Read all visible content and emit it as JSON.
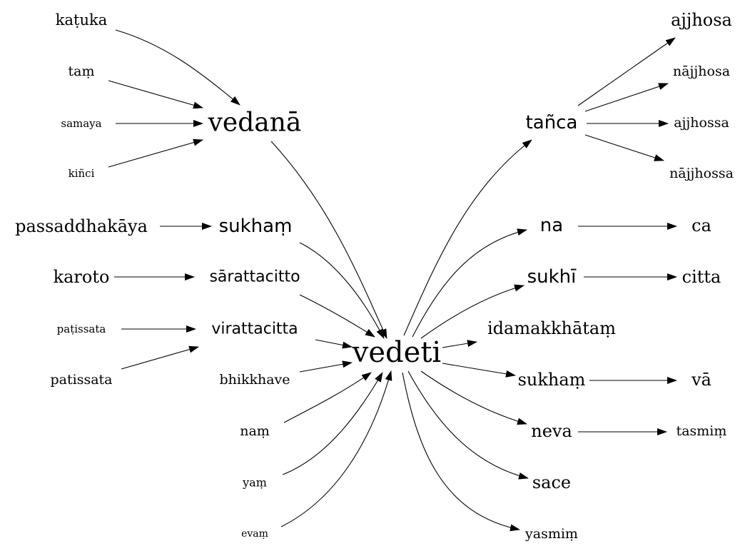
{
  "nodes": {
    "katuka": "kaṭuka",
    "tam": "taṃ",
    "samaya": "samaya",
    "kinci": "kiñci",
    "vedana": "vedanā",
    "passaddhakaya": "passaddhakāya",
    "sukham_left": "sukhaṃ",
    "karoto": "karoto",
    "sarattacitto": "sārattacitto",
    "patissata_dot": "paṭissata",
    "virattacitta": "virattacitta",
    "patissata": "patissata",
    "bhikkhave": "bhikkhave",
    "nam": "naṃ",
    "yam": "yaṃ",
    "evam": "evaṃ",
    "vedeti": "vedeti",
    "tanca": "tañca",
    "ajjhosa": "ajjhosa",
    "najjhosa": "nājjhosa",
    "ajjhossa": "ajjhossa",
    "najjhossa": "nājjhossa",
    "na": "na",
    "ca": "ca",
    "sukhi": "sukhī",
    "citta": "citta",
    "idamakkhatam": "idamakkhātaṃ",
    "sukham_right": "sukhaṃ",
    "va": "vā",
    "neva": "neva",
    "tasmim": "tasmiṃ",
    "sace": "sace",
    "yasmim": "yasmiṃ"
  },
  "edges": [
    [
      "katuka",
      "vedana"
    ],
    [
      "tam",
      "vedana"
    ],
    [
      "samaya",
      "vedana"
    ],
    [
      "kinci",
      "vedana"
    ],
    [
      "vedana",
      "vedeti"
    ],
    [
      "passaddhakaya",
      "sukham_left"
    ],
    [
      "sukham_left",
      "vedeti"
    ],
    [
      "karoto",
      "sarattacitto"
    ],
    [
      "sarattacitto",
      "vedeti"
    ],
    [
      "patissata_dot",
      "virattacitta"
    ],
    [
      "patissata",
      "virattacitta"
    ],
    [
      "virattacitta",
      "vedeti"
    ],
    [
      "bhikkhave",
      "vedeti"
    ],
    [
      "nam",
      "vedeti"
    ],
    [
      "yam",
      "vedeti"
    ],
    [
      "evam",
      "vedeti"
    ],
    [
      "vedeti",
      "tanca"
    ],
    [
      "tanca",
      "ajjhosa"
    ],
    [
      "tanca",
      "najjhosa"
    ],
    [
      "tanca",
      "ajjhossa"
    ],
    [
      "tanca",
      "najjhossa"
    ],
    [
      "vedeti",
      "na"
    ],
    [
      "na",
      "ca"
    ],
    [
      "vedeti",
      "sukhi"
    ],
    [
      "sukhi",
      "citta"
    ],
    [
      "vedeti",
      "idamakkhatam"
    ],
    [
      "vedeti",
      "sukham_right"
    ],
    [
      "sukham_right",
      "va"
    ],
    [
      "vedeti",
      "neva"
    ],
    [
      "neva",
      "tasmim"
    ],
    [
      "vedeti",
      "sace"
    ],
    [
      "vedeti",
      "yasmim"
    ]
  ]
}
